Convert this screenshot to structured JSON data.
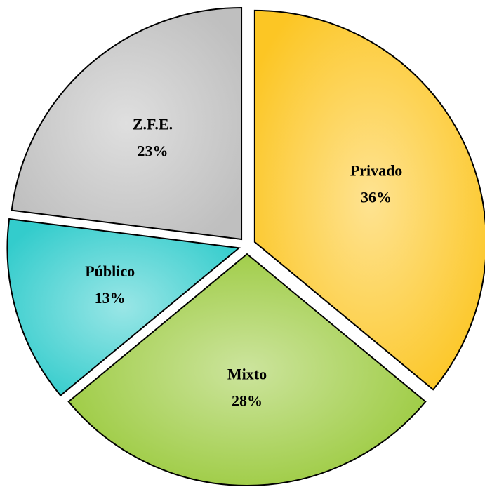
{
  "chart_data": {
    "type": "pie",
    "categories": [
      "Privado",
      "Mixto",
      "Público",
      "Z.F.E."
    ],
    "values": [
      36,
      28,
      13,
      23
    ],
    "value_labels": [
      "36%",
      "28%",
      "13%",
      "23%"
    ],
    "colors": [
      "#fcc624",
      "#99c93a",
      "#33cccc",
      "#bfbfbf"
    ]
  }
}
